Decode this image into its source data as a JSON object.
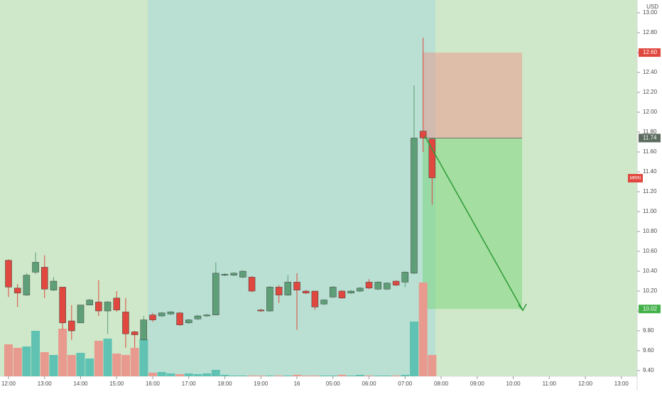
{
  "chart_data": {
    "type": "candlestick",
    "currency": "USD",
    "symbol": "MRIN",
    "x": [
      0,
      1,
      2,
      3,
      4,
      5,
      6,
      7,
      8,
      9,
      10,
      11,
      12,
      13,
      14,
      15,
      16,
      17,
      18,
      19,
      20,
      21,
      22,
      23,
      24,
      25,
      26,
      27,
      28,
      29,
      30,
      31,
      32,
      33,
      34,
      35,
      36,
      37,
      38,
      39,
      40,
      41,
      42,
      43,
      44,
      45,
      46,
      47
    ],
    "candles": {
      "open": [
        10.51,
        10.23,
        10.16,
        10.39,
        10.44,
        10.21,
        10.24,
        9.9,
        9.88,
        10.06,
        10.09,
        10.0,
        10.13,
        9.99,
        9.79,
        9.71,
        9.96,
        9.95,
        9.97,
        9.98,
        9.88,
        9.92,
        9.95,
        9.96,
        10.36,
        10.36,
        10.34,
        10.34,
        10.01,
        10.0,
        10.24,
        10.16,
        10.29,
        10.2,
        10.2,
        10.07,
        10.14,
        10.2,
        10.18,
        10.2,
        10.29,
        10.22,
        10.22,
        10.3,
        10.29,
        10.38,
        11.81,
        11.73
      ],
      "high": [
        10.52,
        10.27,
        10.38,
        10.59,
        10.56,
        10.34,
        10.24,
        10.06,
        10.06,
        10.12,
        10.31,
        10.1,
        10.2,
        10.13,
        9.8,
        9.95,
        9.98,
        9.99,
        10.0,
        9.99,
        9.92,
        9.96,
        9.97,
        10.49,
        10.38,
        10.39,
        10.41,
        10.35,
        10.02,
        10.25,
        10.26,
        10.36,
        10.38,
        10.21,
        10.2,
        10.12,
        10.25,
        10.21,
        10.21,
        10.24,
        10.32,
        10.3,
        10.29,
        10.31,
        10.4,
        12.27,
        12.75,
        11.74
      ],
      "low": [
        10.14,
        10.04,
        10.15,
        10.37,
        10.13,
        10.2,
        9.81,
        9.71,
        9.88,
        10.06,
        9.95,
        9.77,
        9.99,
        9.63,
        9.63,
        9.7,
        9.89,
        9.94,
        9.96,
        9.85,
        9.87,
        9.91,
        9.94,
        9.96,
        10.35,
        10.35,
        10.33,
        10.19,
        9.99,
        9.99,
        10.08,
        10.15,
        9.81,
        10.17,
        10.01,
        10.06,
        10.13,
        10.12,
        10.17,
        10.19,
        10.22,
        10.21,
        10.21,
        10.25,
        10.24,
        10.37,
        11.6,
        11.07
      ],
      "close": [
        10.24,
        10.18,
        10.36,
        10.49,
        10.22,
        10.3,
        9.88,
        9.8,
        10.06,
        10.11,
        10.0,
        10.09,
        10.01,
        9.77,
        9.76,
        9.91,
        9.91,
        9.98,
        9.99,
        9.86,
        9.91,
        9.95,
        9.96,
        10.38,
        10.37,
        10.38,
        10.4,
        10.2,
        10.0,
        10.24,
        10.16,
        10.29,
        10.21,
        10.18,
        10.04,
        10.11,
        10.24,
        10.13,
        10.2,
        10.23,
        10.23,
        10.29,
        10.28,
        10.26,
        10.39,
        11.74,
        11.74,
        11.34
      ],
      "volume": [
        45,
        40,
        42,
        64,
        34,
        30,
        67,
        30,
        33,
        25,
        50,
        53,
        32,
        30,
        40,
        52,
        5,
        6,
        4,
        3,
        4,
        3,
        4,
        9,
        2,
        1,
        1,
        1,
        1,
        1,
        1,
        1,
        2,
        1,
        1,
        1,
        1,
        2,
        1,
        2,
        1,
        1,
        1,
        1,
        2,
        77,
        132,
        30
      ]
    },
    "up_color": "#5e9f78",
    "down_color": "#e0483f",
    "volume_up_color": "#60c2b2",
    "volume_down_color": "#e99a8f",
    "volume_ylim": [
      0,
      160
    ],
    "xlim": [
      -0.946,
      69.75
    ],
    "ylim": [
      9.343,
      13.129
    ],
    "xticks": [
      {
        "value": 0,
        "label": "12:00"
      },
      {
        "value": 4,
        "label": "13:00"
      },
      {
        "value": 8,
        "label": "14:00"
      },
      {
        "value": 12,
        "label": "15:00"
      },
      {
        "value": 16,
        "label": "16:00"
      },
      {
        "value": 20,
        "label": "17:00"
      },
      {
        "value": 24,
        "label": "18:00"
      },
      {
        "value": 28,
        "label": "19:00"
      },
      {
        "value": 32,
        "label": "16"
      },
      {
        "value": 36,
        "label": "05:00"
      },
      {
        "value": 40,
        "label": "06:00"
      },
      {
        "value": 44,
        "label": "07:00"
      },
      {
        "value": 48,
        "label": "08:00"
      },
      {
        "value": 52,
        "label": "09:00"
      },
      {
        "value": 56,
        "label": "10:00"
      },
      {
        "value": 60,
        "label": "11:00"
      },
      {
        "value": 64,
        "label": "12:00"
      },
      {
        "value": 68,
        "label": "13:00"
      }
    ],
    "yticks": [
      {
        "value": 9.4,
        "label": "9.40"
      },
      {
        "value": 9.6,
        "label": "9.60"
      },
      {
        "value": 9.8,
        "label": "9.80"
      },
      {
        "value": 10,
        "label": "10.00"
      },
      {
        "value": 10.2,
        "label": "10.20"
      },
      {
        "value": 10.4,
        "label": "10.40"
      },
      {
        "value": 10.6,
        "label": "10.60"
      },
      {
        "value": 10.8,
        "label": "10.80"
      },
      {
        "value": 11,
        "label": "11.00"
      },
      {
        "value": 11.2,
        "label": "11.20"
      },
      {
        "value": 11.4,
        "label": "11.40"
      },
      {
        "value": 11.6,
        "label": "11.60"
      },
      {
        "value": 11.8,
        "label": "11.80"
      },
      {
        "value": 12,
        "label": "12.00"
      },
      {
        "value": 12.2,
        "label": "12.20"
      },
      {
        "value": 12.4,
        "label": "12.40"
      },
      {
        "value": 12.6,
        "label": "12.60"
      },
      {
        "value": 12.8,
        "label": "12.80"
      },
      {
        "value": 13,
        "label": "13.00"
      }
    ],
    "position": {
      "stop": {
        "value": 12.6,
        "label": "12.60"
      },
      "entry": {
        "value": 11.74,
        "label": "11.74"
      },
      "target": {
        "value": 10.02,
        "label": "10.02"
      }
    }
  }
}
